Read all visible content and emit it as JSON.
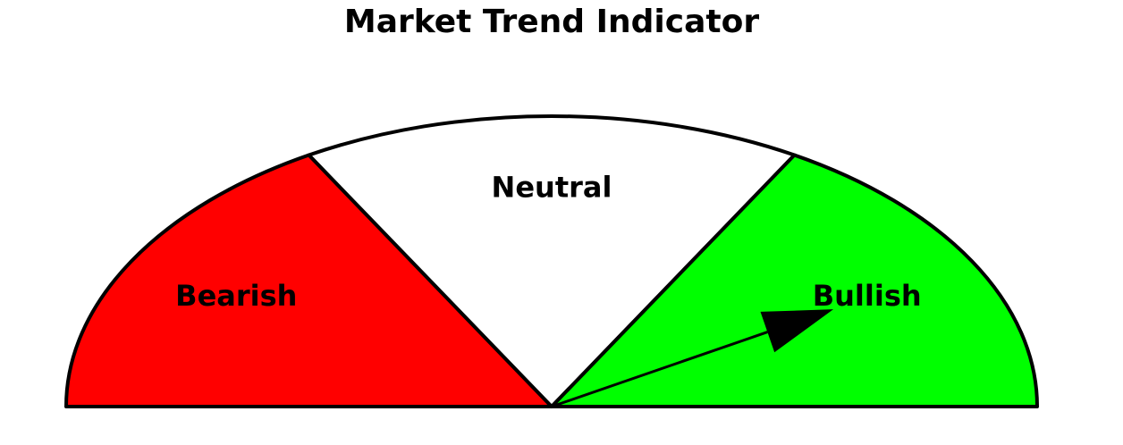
{
  "chart_data": {
    "type": "gauge",
    "title": "Market Trend Indicator",
    "range": [
      0,
      180
    ],
    "zones": [
      {
        "label": "Bearish",
        "from": 0,
        "to": 60,
        "color": "#ff0000"
      },
      {
        "label": "Neutral",
        "from": 60,
        "to": 120,
        "color": "#ffffff"
      },
      {
        "label": "Bullish",
        "from": 120,
        "to": 180,
        "color": "#00ff00"
      }
    ],
    "pointer": {
      "value": 150,
      "color": "#000000"
    },
    "outline_color": "#000000"
  }
}
